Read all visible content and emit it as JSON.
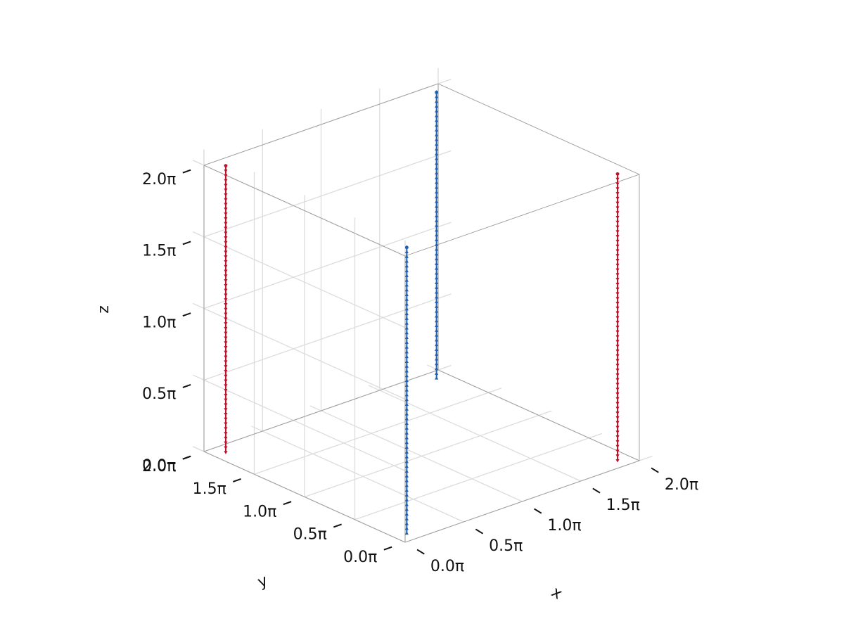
{
  "chart_data": {
    "type": "3d-quiver",
    "title": "",
    "xlabel": "x",
    "ylabel": "y",
    "zlabel": "z",
    "x_ticks": [
      "0.0π",
      "0.5π",
      "1.0π",
      "1.5π",
      "2.0π"
    ],
    "y_ticks": [
      "0.0π",
      "0.5π",
      "1.0π",
      "1.5π",
      "2.0π"
    ],
    "z_ticks": [
      "0.0π",
      "0.5π",
      "1.0π",
      "1.5π",
      "2.0π"
    ],
    "tick_values_pi": [
      0,
      0.5,
      1.0,
      1.5,
      2.0
    ],
    "xlim_pi": [
      0,
      2
    ],
    "ylim_pi": [
      0,
      2
    ],
    "zlim_pi": [
      0,
      2
    ],
    "grid": true,
    "series": [
      {
        "color": "#c0112b",
        "direction": "down",
        "lines": [
          {
            "x_pi": 0.1,
            "y_pi": 1.9,
            "z_pi": [
              0,
              2
            ]
          },
          {
            "x_pi": 1.9,
            "y_pi": 0.1,
            "z_pi": [
              0,
              2
            ]
          }
        ]
      },
      {
        "color": "#1f5fae",
        "direction": "up",
        "lines": [
          {
            "x_pi": 0.1,
            "y_pi": 0.1,
            "z_pi": [
              0,
              2
            ]
          },
          {
            "x_pi": 1.9,
            "y_pi": 1.9,
            "z_pi": [
              0,
              2
            ]
          }
        ]
      }
    ]
  }
}
